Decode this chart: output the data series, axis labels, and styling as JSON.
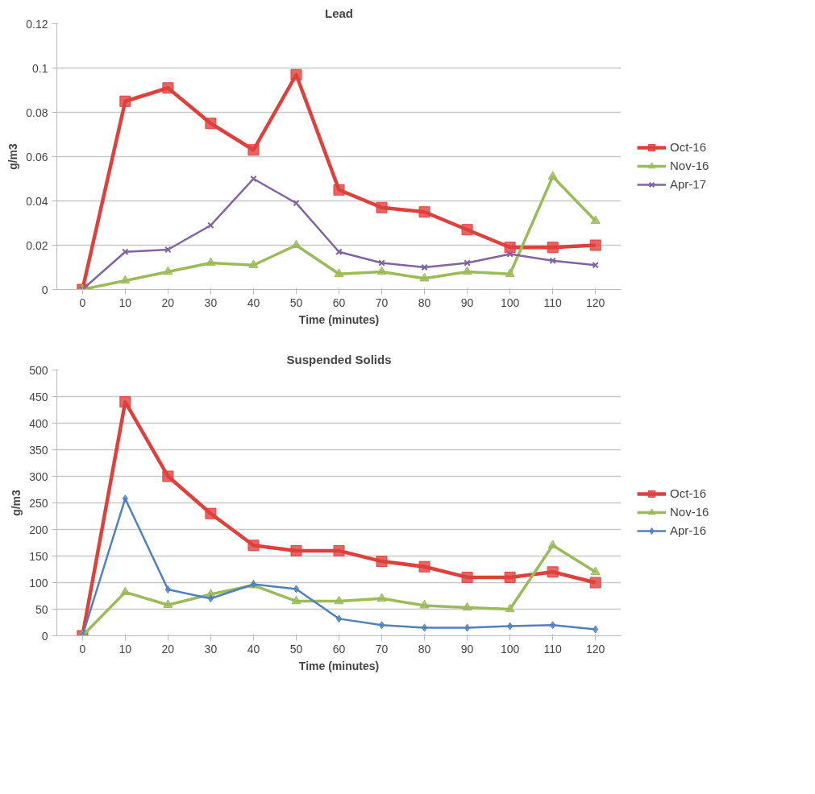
{
  "chart_data": [
    {
      "type": "line",
      "title": "Lead",
      "xlabel": "Time (minutes)",
      "ylabel": "g/m3",
      "categories": [
        "0",
        "10",
        "20",
        "30",
        "40",
        "50",
        "60",
        "70",
        "80",
        "90",
        "100",
        "110",
        "120"
      ],
      "ylim": [
        0,
        0.12
      ],
      "yticks": [
        0,
        0.02,
        0.04,
        0.06,
        0.08,
        0.1,
        0.12
      ],
      "grid": "y",
      "legend": "right",
      "series": [
        {
          "name": "Oct-16",
          "color": "#e0403c",
          "marker": "square",
          "values": [
            0,
            0.085,
            0.091,
            0.075,
            0.063,
            0.097,
            0.045,
            0.037,
            0.035,
            0.027,
            0.019,
            0.019,
            0.02
          ]
        },
        {
          "name": "Nov-16",
          "color": "#9bbb59",
          "marker": "triangle",
          "values": [
            0,
            0.004,
            0.008,
            0.012,
            0.011,
            0.02,
            0.007,
            0.008,
            0.005,
            0.008,
            0.007,
            0.051,
            0.031
          ]
        },
        {
          "name": "Apr-17",
          "color": "#8064a2",
          "marker": "cross",
          "values": [
            0,
            0.017,
            0.018,
            0.029,
            0.05,
            0.039,
            0.017,
            0.012,
            0.01,
            0.012,
            0.016,
            0.013,
            0.011
          ]
        }
      ]
    },
    {
      "type": "line",
      "title": "Suspended Solids",
      "xlabel": "Time (minutes)",
      "ylabel": "g/m3",
      "categories": [
        "0",
        "10",
        "20",
        "30",
        "40",
        "50",
        "60",
        "70",
        "80",
        "90",
        "100",
        "110",
        "120"
      ],
      "ylim": [
        0,
        500
      ],
      "yticks": [
        0,
        50,
        100,
        150,
        200,
        250,
        300,
        350,
        400,
        450,
        500
      ],
      "grid": "y",
      "legend": "right",
      "series": [
        {
          "name": "Oct-16",
          "color": "#e0403c",
          "marker": "square",
          "values": [
            0,
            440,
            300,
            230,
            170,
            160,
            160,
            140,
            130,
            110,
            110,
            120,
            100
          ]
        },
        {
          "name": "Nov-16",
          "color": "#9bbb59",
          "marker": "triangle",
          "values": [
            0,
            82,
            58,
            78,
            95,
            65,
            65,
            70,
            57,
            53,
            50,
            170,
            120
          ]
        },
        {
          "name": "Apr-16",
          "color": "#4f81bd",
          "marker": "diamond",
          "values": [
            0,
            258,
            87,
            70,
            97,
            88,
            32,
            20,
            15,
            15,
            18,
            20,
            12
          ]
        }
      ]
    }
  ]
}
